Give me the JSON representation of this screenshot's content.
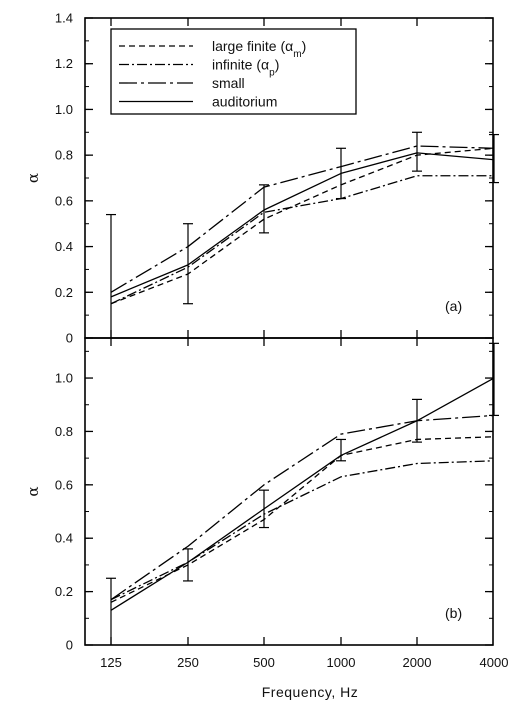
{
  "chart_data": [
    {
      "type": "line",
      "panel_label": "(a)",
      "ylabel": "α",
      "ylim": [
        0,
        1.4
      ],
      "yticks": [
        "0",
        "0.2",
        "0.4",
        "0.6",
        "0.8",
        "1.0",
        "1.2",
        "1.4"
      ],
      "categories": [
        "125",
        "250",
        "500",
        "1000",
        "2000",
        "4000"
      ],
      "legend": {
        "placement": "top-left",
        "entries": [
          {
            "name": "large finite",
            "sym": "α",
            "sub": "m",
            "style": "dashed"
          },
          {
            "name": "infinite",
            "sym": "α",
            "sub": "p",
            "style": "dashdot"
          },
          {
            "name": "small",
            "sym": "",
            "sub": "",
            "style": "longdash"
          },
          {
            "name": "auditorium",
            "sym": "",
            "sub": "",
            "style": "solid"
          }
        ]
      },
      "series": [
        {
          "style": "dashed",
          "values": [
            0.15,
            0.28,
            0.52,
            0.67,
            0.8,
            0.83
          ]
        },
        {
          "style": "dashdot",
          "values": [
            0.15,
            0.31,
            0.55,
            0.61,
            0.71,
            0.71
          ]
        },
        {
          "style": "longdash",
          "values": [
            0.2,
            0.4,
            0.66,
            0.75,
            0.84,
            0.83
          ]
        },
        {
          "style": "solid",
          "values": [
            0.18,
            0.32,
            0.56,
            0.72,
            0.81,
            0.78
          ]
        }
      ],
      "error_bars": [
        {
          "x_index": 0,
          "low": 0.0,
          "high": 0.54
        },
        {
          "x_index": 1,
          "low": 0.15,
          "high": 0.5
        },
        {
          "x_index": 2,
          "low": 0.46,
          "high": 0.67
        },
        {
          "x_index": 3,
          "low": 0.61,
          "high": 0.83
        },
        {
          "x_index": 4,
          "low": 0.73,
          "high": 0.9
        },
        {
          "x_index": 5,
          "low": 0.68,
          "high": 0.89
        }
      ]
    },
    {
      "type": "line",
      "panel_label": "(b)",
      "ylabel": "α",
      "ylim": [
        0,
        1.15
      ],
      "yticks": [
        "0",
        "0.2",
        "0.4",
        "0.6",
        "0.8",
        "1.0"
      ],
      "categories": [
        "125",
        "250",
        "500",
        "1000",
        "2000",
        "4000"
      ],
      "xlabel": "Frequency, Hz",
      "series": [
        {
          "style": "dashed",
          "values": [
            0.16,
            0.3,
            0.47,
            0.71,
            0.77,
            0.78
          ]
        },
        {
          "style": "dashdot",
          "values": [
            0.17,
            0.31,
            0.49,
            0.63,
            0.68,
            0.69
          ]
        },
        {
          "style": "longdash",
          "values": [
            0.17,
            0.37,
            0.6,
            0.79,
            0.84,
            0.86
          ]
        },
        {
          "style": "solid",
          "values": [
            0.13,
            0.31,
            0.51,
            0.71,
            0.84,
            1.0
          ]
        }
      ],
      "error_bars": [
        {
          "x_index": 0,
          "low": 0.0,
          "high": 0.25
        },
        {
          "x_index": 1,
          "low": 0.24,
          "high": 0.36
        },
        {
          "x_index": 2,
          "low": 0.44,
          "high": 0.58
        },
        {
          "x_index": 3,
          "low": 0.69,
          "high": 0.77
        },
        {
          "x_index": 4,
          "low": 0.76,
          "high": 0.92
        },
        {
          "x_index": 5,
          "low": 0.86,
          "high": 1.13
        }
      ]
    }
  ]
}
